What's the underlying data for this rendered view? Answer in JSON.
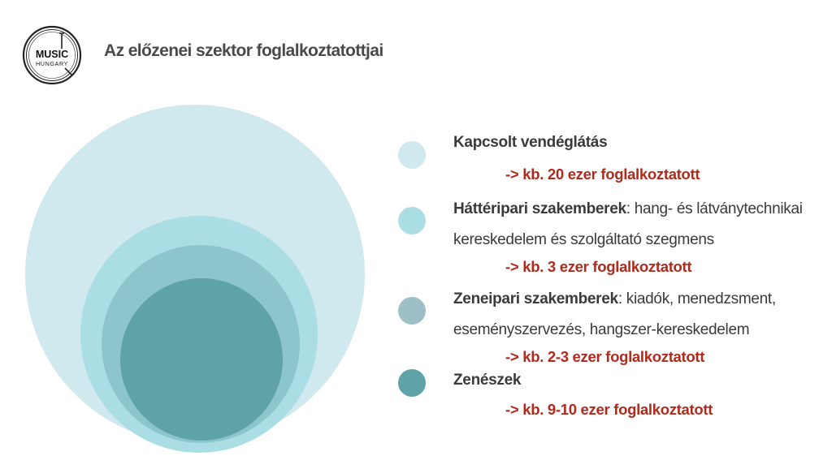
{
  "header": {
    "title": "Az előzenei szektor foglalkoztatottjai",
    "logo_text_top": "MUSIC",
    "logo_text_bottom": "HUNGARY"
  },
  "legend": [
    {
      "name": "Kapcsolt vendéglátás",
      "desc": "",
      "note": "-> kb. 20 ezer foglalkoztatott",
      "color": "#cfe9ee"
    },
    {
      "name": "Háttéripari szakemberek",
      "desc": ": hang- és látványtechnikai kereskedelem és szolgáltató szegmens",
      "note": "-> kb. 3 ezer foglalkoztatott",
      "color": "#abdde4"
    },
    {
      "name": "Zeneipari szakemberek",
      "desc": ": kiadók, menedzsment, eseményszervezés, hangszer-kereskedelem",
      "note": "-> kb. 2-3 ezer foglalkoztatott",
      "color": "#9dbfc6"
    },
    {
      "name": "Zenészek",
      "desc": "",
      "note": "-> kb. 9-10 ezer foglalkoztatott",
      "color": "#5fa3a8"
    }
  ],
  "colors": {
    "title": "#4a4a4a",
    "note": "#b22a1b",
    "circle_outer": "#cfe9ee",
    "circle_2": "#abdde4",
    "circle_3": "#8cc6cc",
    "circle_inner": "#5fa3a8"
  }
}
